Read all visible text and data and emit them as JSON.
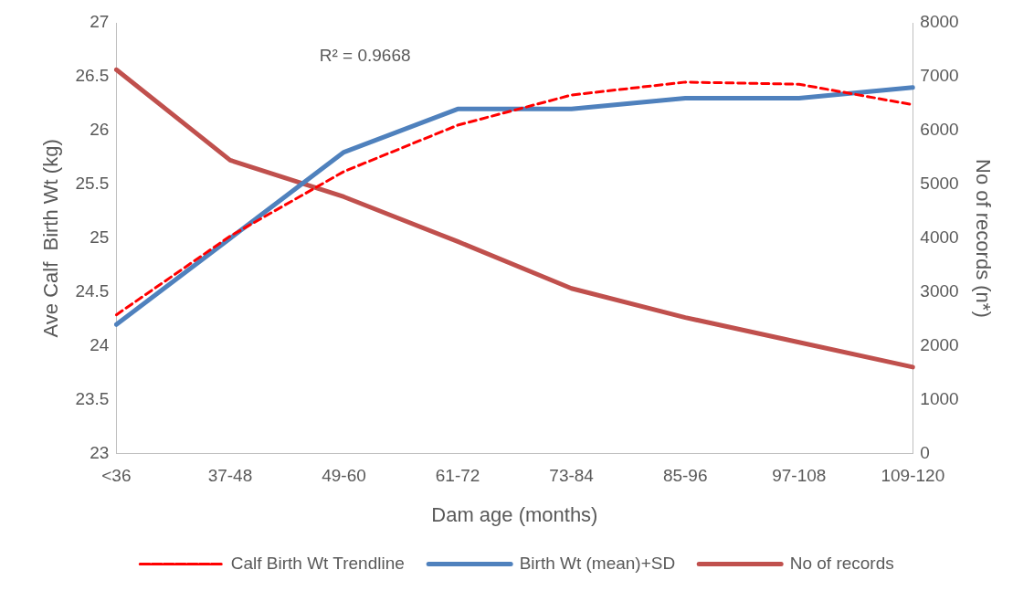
{
  "chart_data": {
    "type": "line",
    "xlabel": "Dam age (months)",
    "ylabel": "Ave Calf  Birth Wt (kg)",
    "y2label": "No of records (n*)",
    "categories": [
      "<36",
      "37-48",
      "49-60",
      "61-72",
      "73-84",
      "85-96",
      "97-108",
      "109-120"
    ],
    "series": [
      {
        "name": "Birth Wt (mean)+SD",
        "color": "#4f81bd",
        "line_style": "solid",
        "values": [
          24.2,
          25.0,
          25.8,
          26.2,
          26.2,
          26.3,
          26.3,
          26.4
        ]
      },
      {
        "name": "No of records",
        "color": "#c0504d",
        "line_style": "solid",
        "axis": "y2",
        "values": [
          7130,
          5450,
          4770,
          3940,
          3070,
          2530,
          2070,
          1610
        ]
      },
      {
        "name": "Calf Birth Wt Trendline",
        "color": "#ff0000",
        "line_style": "dashed",
        "values": [
          24.29,
          25.02,
          25.62,
          26.05,
          26.33,
          26.45,
          26.43,
          26.24
        ]
      }
    ],
    "ylim": [
      23,
      27
    ],
    "yticks": [
      23,
      23.5,
      24,
      24.5,
      25,
      25.5,
      26,
      26.5,
      27
    ],
    "y2lim": [
      0,
      8000
    ],
    "y2ticks": [
      0,
      1000,
      2000,
      3000,
      4000,
      5000,
      6000,
      7000,
      8000
    ],
    "marker": "none",
    "legend": "bottom",
    "annotations": [
      "R² = 0.9668"
    ]
  }
}
